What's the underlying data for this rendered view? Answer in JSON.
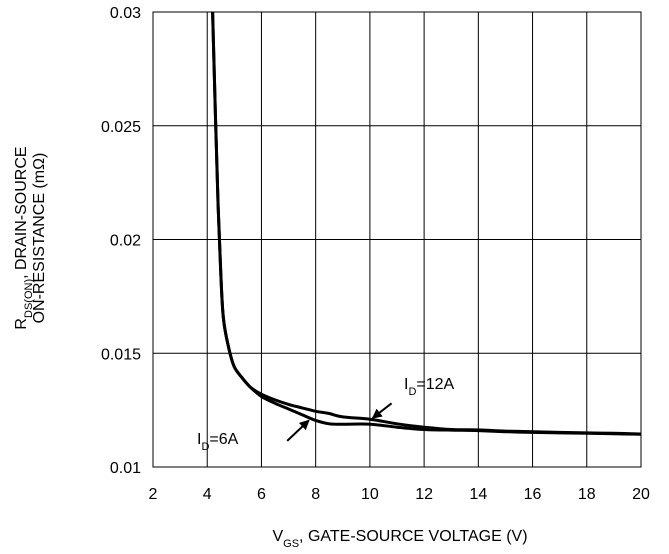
{
  "chart_data": {
    "type": "line",
    "xlabel": {
      "main": "V",
      "sub": "GS",
      "rest": ", GATE-SOURCE VOLTAGE (V)"
    },
    "ylabel": {
      "line1_main": "R",
      "line1_sub": "DS(ON)",
      "line1_rest": ", DRAIN-SOURCE",
      "line2": "ON-RESISTANCE (mΩ)"
    },
    "xlim": [
      2,
      20
    ],
    "ylim": [
      0.01,
      0.03
    ],
    "x_ticks": [
      "2",
      "4",
      "6",
      "8",
      "10",
      "12",
      "14",
      "16",
      "18",
      "20"
    ],
    "y_ticks": [
      "0.01",
      "0.015",
      "0.02",
      "0.025",
      "0.03"
    ],
    "grid": true,
    "series": [
      {
        "name": "ID=12A",
        "x": [
          4.2,
          4.3,
          4.4,
          4.5,
          4.6,
          4.8,
          5.0,
          5.3,
          5.6,
          6.0,
          6.5,
          7.0,
          7.5,
          8.0,
          8.5,
          9.0,
          10.0,
          11.0,
          12.0,
          13.0,
          14.0,
          15.0,
          16.0,
          17.0,
          18.0,
          19.0,
          20.0
        ],
        "y": [
          0.03,
          0.0255,
          0.0215,
          0.0185,
          0.0165,
          0.0152,
          0.0144,
          0.0139,
          0.0135,
          0.0132,
          0.01295,
          0.01275,
          0.0126,
          0.01245,
          0.01235,
          0.0122,
          0.0121,
          0.0119,
          0.01175,
          0.01165,
          0.01163,
          0.01158,
          0.01155,
          0.01152,
          0.0115,
          0.01148,
          0.01145
        ]
      },
      {
        "name": "ID=6A",
        "x": [
          4.2,
          4.3,
          4.4,
          4.5,
          4.6,
          4.8,
          5.0,
          5.3,
          5.6,
          6.0,
          6.5,
          7.0,
          7.5,
          8.0,
          8.5,
          9.0,
          10.0,
          11.0,
          12.0,
          13.0,
          14.0,
          15.0,
          16.0,
          17.0,
          18.0,
          19.0,
          20.0
        ],
        "y": [
          0.03,
          0.0255,
          0.0215,
          0.0185,
          0.0165,
          0.0152,
          0.0144,
          0.0139,
          0.0135,
          0.0131,
          0.0128,
          0.01255,
          0.0123,
          0.01205,
          0.0119,
          0.01188,
          0.01188,
          0.01175,
          0.01165,
          0.01162,
          0.0116,
          0.01155,
          0.01152,
          0.0115,
          0.01148,
          0.01146,
          0.01144
        ]
      }
    ],
    "annotations": [
      {
        "target": "ID=12A",
        "main": "I",
        "sub": "D",
        "rest": "=12A",
        "arrow_from": [
          10.8,
          0.0128
        ],
        "arrow_to": [
          10.1,
          0.01215
        ]
      },
      {
        "target": "ID=6A",
        "main": "I",
        "sub": "D",
        "rest": "=6A",
        "arrow_from": [
          6.95,
          0.01115
        ],
        "arrow_to": [
          7.75,
          0.01205
        ]
      }
    ]
  }
}
